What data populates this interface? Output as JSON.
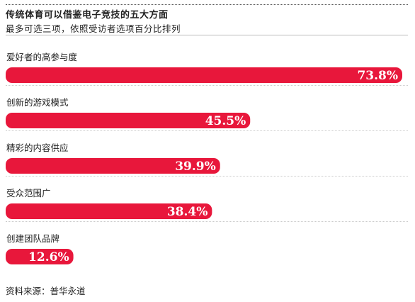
{
  "header": {
    "title": "传统体育可以借鉴电子竞技的五大方面",
    "subtitle": "最多可选三项，依照受访者选项百分比排列"
  },
  "footer": {
    "source": "资料来源：普华永道"
  },
  "colors": {
    "bar": "#e8173b",
    "text": "#222222"
  },
  "chart_data": {
    "type": "bar",
    "orientation": "horizontal",
    "title": "传统体育可以借鉴电子竞技的五大方面",
    "subtitle": "最多可选三项，依照受访者选项百分比排列",
    "xlabel": "",
    "ylabel": "",
    "unit": "%",
    "grid": false,
    "xlim": [
      0,
      73.8
    ],
    "categories": [
      "爱好者的高参与度",
      "创新的游戏模式",
      "精彩的内容供应",
      "受众范围广",
      "创建团队品牌"
    ],
    "values": [
      73.8,
      45.5,
      39.9,
      38.4,
      12.6
    ],
    "value_labels": [
      "73.8%",
      "45.5%",
      "39.9%",
      "38.4%",
      "12.6%"
    ]
  }
}
